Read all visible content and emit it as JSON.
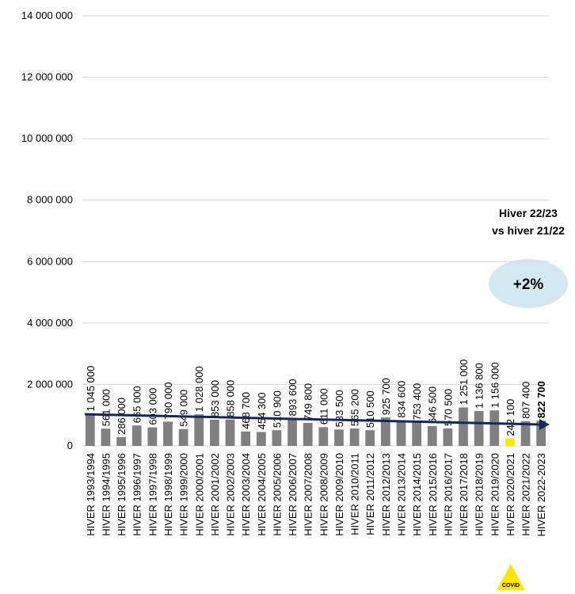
{
  "chart_data": {
    "type": "bar",
    "categories": [
      "HIVER 1993/1994",
      "HIVER 1994/1995",
      "HIVER 1995/1996",
      "HIVER 1996/1997",
      "HIVER 1997/1998",
      "HIVER 1998/1999",
      "HIVER 1999/2000",
      "HIVER 2000/2001",
      "HIVER 2001/2002",
      "HIVER 2002/2003",
      "HIVER 2003/2004",
      "HIVER 2004/2005",
      "HIVER 2005/2006",
      "HIVER 2006/2007",
      "HIVER 2007/2008",
      "HIVER 2008/2009",
      "HIVER 2009/2010",
      "HIVER 2010/2011",
      "HIVER 2011/2012",
      "HIVER 2012/2013",
      "HIVER 2013/2014",
      "HIVER 2014/2015",
      "HIVER 2015/2016",
      "HIVER 2016/2017",
      "HIVER 2017/2018",
      "HIVER 2018/2019",
      "HIVER 2019/2020",
      "HIVER 2020/2021",
      "HIVER 2021/2022",
      "HIVER 2022-2023"
    ],
    "values": [
      1045000,
      561000,
      286000,
      665000,
      603000,
      790000,
      549000,
      1028000,
      853000,
      858000,
      468700,
      454300,
      510900,
      893600,
      749800,
      611000,
      533500,
      565200,
      510500,
      925700,
      834600,
      753400,
      646500,
      570500,
      1251000,
      1136800,
      1156000,
      242100,
      807400,
      822700
    ],
    "value_labels": [
      "1 045 000",
      "561 000",
      "286 000",
      "665 000",
      "603 000",
      "790 000",
      "549 000",
      "1 028 000",
      "853 000",
      "858 000",
      "468 700",
      "454 300",
      "510 900",
      "893 600",
      "749 800",
      "611 000",
      "533 500",
      "565 200",
      "510 500",
      "925 700",
      "834 600",
      "753 400",
      "646 500",
      "570 500",
      "1 251 000",
      "1 136 800",
      "1 156 000",
      "242 100",
      "807 400",
      "822 700"
    ],
    "colors": [
      "#808080",
      "#808080",
      "#808080",
      "#808080",
      "#808080",
      "#808080",
      "#808080",
      "#808080",
      "#808080",
      "#808080",
      "#808080",
      "#808080",
      "#808080",
      "#808080",
      "#808080",
      "#808080",
      "#808080",
      "#808080",
      "#808080",
      "#808080",
      "#808080",
      "#808080",
      "#808080",
      "#808080",
      "#808080",
      "#808080",
      "#808080",
      "#ffe600",
      "#808080",
      "#808080"
    ],
    "ylim": [
      0,
      14000000
    ],
    "yticks": [
      0,
      {
        "value": 2000000,
        "label": "2 000 000"
      },
      {
        "value": 4000000,
        "label": "4 000 000"
      },
      {
        "value": 6000000,
        "label": "6 000 000"
      },
      {
        "value": 8000000,
        "label": "8 000 000"
      },
      {
        "value": 10000000,
        "label": "10 000 000"
      },
      {
        "value": 12000000,
        "label": "12 000 000"
      },
      {
        "value": 14000000,
        "label": "14 000 000"
      }
    ],
    "grid": true,
    "annotations": [
      "Hiver 22/23",
      "vs hiver 21/22",
      "+2%",
      "COVID"
    ]
  }
}
